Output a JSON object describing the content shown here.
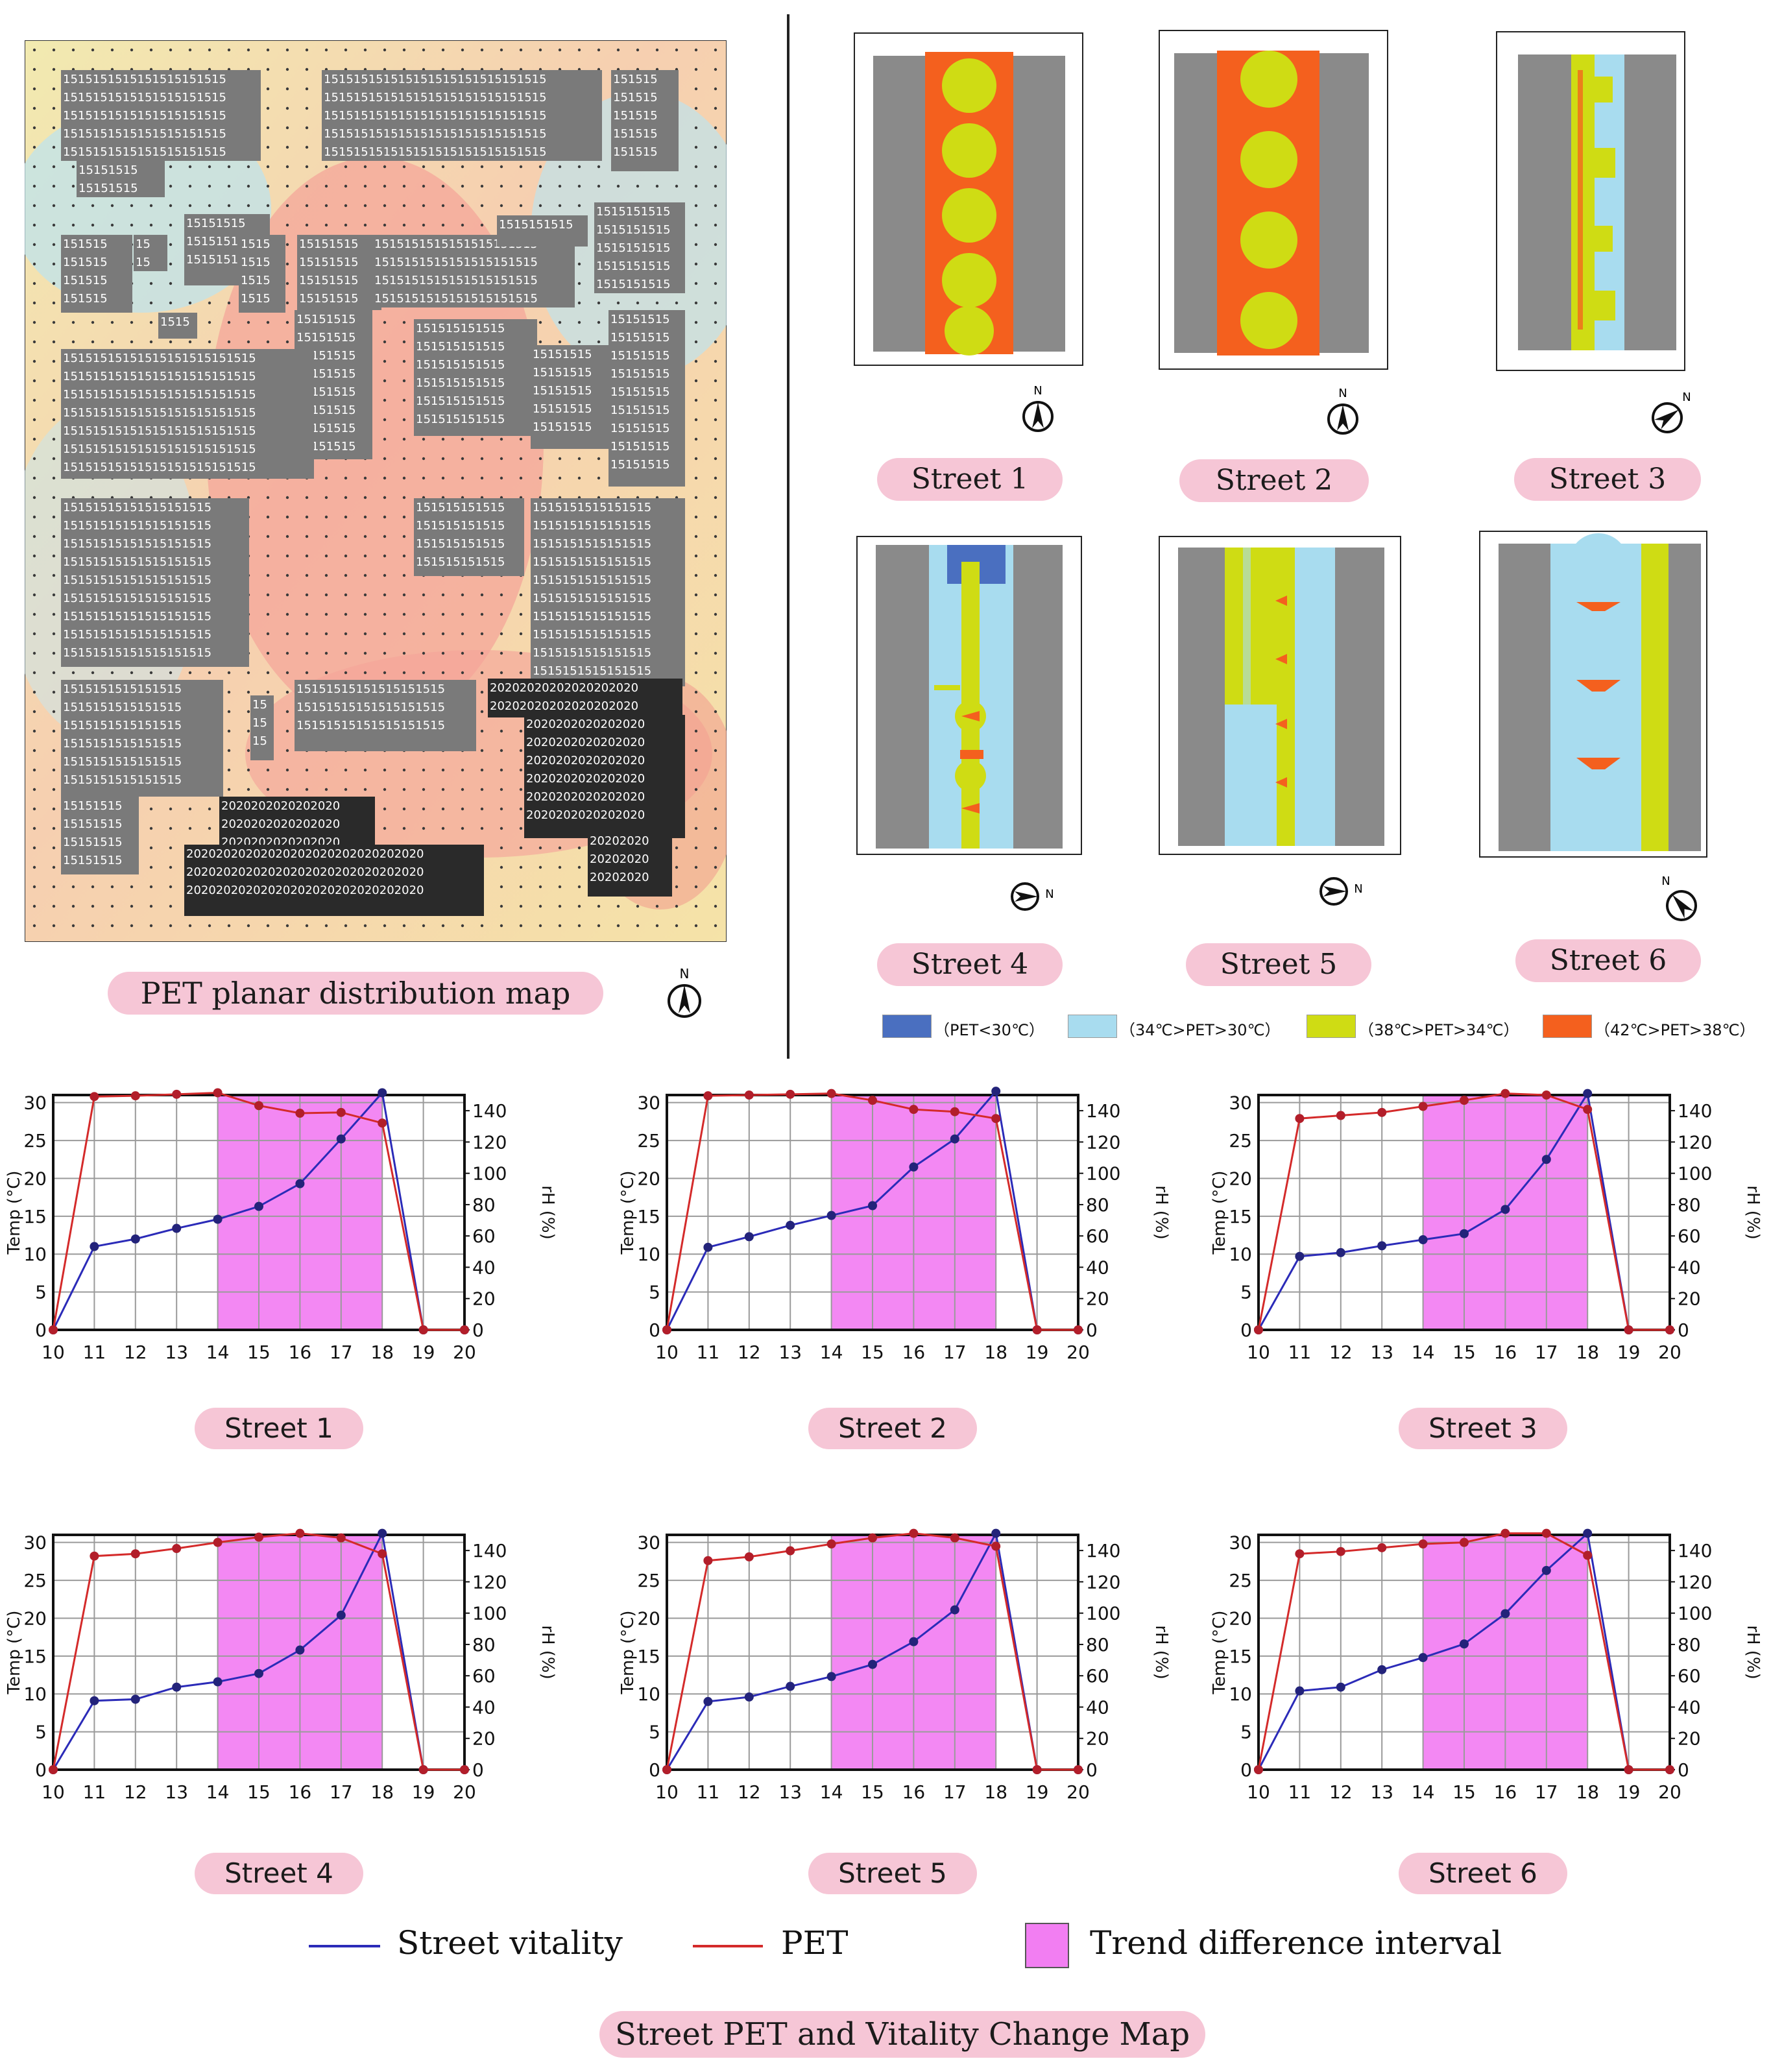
{
  "map_section": {
    "title": "PET planar distribution map",
    "north_label": "N",
    "block_label_a": "15",
    "block_label_b": "20"
  },
  "streets_section": {
    "streets": [
      {
        "label": "Street 1"
      },
      {
        "label": "Street 2"
      },
      {
        "label": "Street 3"
      },
      {
        "label": "Street 4"
      },
      {
        "label": "Street 5"
      },
      {
        "label": "Street 6"
      }
    ],
    "legend": [
      {
        "label": "（PET<30℃）",
        "color": "#4a6fc0"
      },
      {
        "label": "（34℃>PET>30℃）",
        "color": "#a8dcef"
      },
      {
        "label": "（38℃>PET>34℃）",
        "color": "#cfdc14"
      },
      {
        "label": "（42℃>PET>38℃）",
        "color": "#f4601e"
      }
    ],
    "colors": {
      "building": "#8a8a8a",
      "hot": "#f4601e",
      "warm": "#cfdc14",
      "mild": "#a8dcef",
      "cool": "#4a6fc0"
    }
  },
  "charts_section": {
    "title": "Street PET and Vitality Change Map",
    "legend": {
      "vitality": "Street vitality",
      "pet": "PET",
      "interval": "Trend difference interval"
    },
    "colors": {
      "vitality": "#2b2bb8",
      "pet": "#d42a2a",
      "interval": "#f27ef2"
    }
  },
  "chart_data": [
    {
      "type": "line",
      "title": "Street 1",
      "xlabel": "",
      "ylabel": "Temp (°C)",
      "ylabel_right": "rH (%)",
      "x": [
        10,
        11,
        12,
        13,
        14,
        15,
        16,
        17,
        18,
        19,
        20
      ],
      "ylim": [
        0,
        31
      ],
      "ylim_right": [
        0,
        150
      ],
      "yticks": [
        0,
        5,
        10,
        15,
        20,
        25,
        30
      ],
      "yticks_right": [
        0,
        20,
        40,
        60,
        80,
        100,
        120,
        140
      ],
      "highlight": [
        14,
        18
      ],
      "series": [
        {
          "name": "PET",
          "values": [
            0,
            30.8,
            30.9,
            31.1,
            31.3,
            29.6,
            28.6,
            28.7,
            27.3,
            0,
            0
          ]
        },
        {
          "name": "Street vitality",
          "values": [
            0,
            11,
            12,
            13.4,
            14.6,
            16.3,
            19.3,
            25.2,
            31.3,
            0,
            0
          ]
        }
      ]
    },
    {
      "type": "line",
      "title": "Street 2",
      "xlabel": "",
      "ylabel": "Temp (°C)",
      "ylabel_right": "rH (%)",
      "x": [
        10,
        11,
        12,
        13,
        14,
        15,
        16,
        17,
        18,
        19,
        20
      ],
      "ylim": [
        0,
        31
      ],
      "ylim_right": [
        0,
        150
      ],
      "yticks": [
        0,
        5,
        10,
        15,
        20,
        25,
        30
      ],
      "yticks_right": [
        0,
        20,
        40,
        60,
        80,
        100,
        120,
        140
      ],
      "highlight": [
        14,
        18
      ],
      "series": [
        {
          "name": "PET",
          "values": [
            0,
            30.9,
            31,
            31.1,
            31.2,
            30.3,
            29.1,
            28.8,
            27.9,
            0,
            0
          ]
        },
        {
          "name": "Street vitality",
          "values": [
            0,
            10.9,
            12.3,
            13.8,
            15.1,
            16.4,
            21.5,
            25.2,
            31.5,
            0,
            0
          ]
        }
      ]
    },
    {
      "type": "line",
      "title": "Street 3",
      "xlabel": "",
      "ylabel": "Temp (°C)",
      "ylabel_right": "rH (%)",
      "x": [
        10,
        11,
        12,
        13,
        14,
        15,
        16,
        17,
        18,
        19,
        20
      ],
      "ylim": [
        0,
        31
      ],
      "ylim_right": [
        0,
        150
      ],
      "yticks": [
        0,
        5,
        10,
        15,
        20,
        25,
        30
      ],
      "yticks_right": [
        0,
        20,
        40,
        60,
        80,
        100,
        120,
        140
      ],
      "highlight": [
        14,
        18
      ],
      "series": [
        {
          "name": "PET",
          "values": [
            0,
            27.9,
            28.3,
            28.7,
            29.5,
            30.3,
            31.2,
            31,
            29.1,
            0,
            0
          ]
        },
        {
          "name": "Street vitality",
          "values": [
            0,
            9.7,
            10.2,
            11.1,
            11.9,
            12.7,
            15.9,
            22.5,
            31.2,
            0,
            0
          ]
        }
      ]
    },
    {
      "type": "line",
      "title": "Street 4",
      "xlabel": "",
      "ylabel": "Temp (°C)",
      "ylabel_right": "rH (%)",
      "x": [
        10,
        11,
        12,
        13,
        14,
        15,
        16,
        17,
        18,
        19,
        20
      ],
      "ylim": [
        0,
        31
      ],
      "ylim_right": [
        0,
        150
      ],
      "yticks": [
        0,
        5,
        10,
        15,
        20,
        25,
        30
      ],
      "yticks_right": [
        0,
        20,
        40,
        60,
        80,
        100,
        120,
        140
      ],
      "highlight": [
        14,
        18
      ],
      "series": [
        {
          "name": "PET",
          "values": [
            0,
            28.2,
            28.5,
            29.2,
            30,
            30.7,
            31.2,
            30.6,
            28.5,
            0,
            0
          ]
        },
        {
          "name": "Street vitality",
          "values": [
            0,
            9.1,
            9.3,
            10.9,
            11.6,
            12.7,
            15.8,
            20.4,
            31.2,
            0,
            0
          ]
        }
      ]
    },
    {
      "type": "line",
      "title": "Street 5",
      "xlabel": "",
      "ylabel": "Temp (°C)",
      "ylabel_right": "rH (%)",
      "x": [
        10,
        11,
        12,
        13,
        14,
        15,
        16,
        17,
        18,
        19,
        20
      ],
      "ylim": [
        0,
        31
      ],
      "ylim_right": [
        0,
        150
      ],
      "yticks": [
        0,
        5,
        10,
        15,
        20,
        25,
        30
      ],
      "yticks_right": [
        0,
        20,
        40,
        60,
        80,
        100,
        120,
        140
      ],
      "highlight": [
        14,
        18
      ],
      "series": [
        {
          "name": "PET",
          "values": [
            0,
            27.6,
            28.1,
            28.9,
            29.8,
            30.6,
            31.2,
            30.6,
            29.5,
            0,
            0
          ]
        },
        {
          "name": "Street vitality",
          "values": [
            0,
            9,
            9.6,
            11,
            12.3,
            13.9,
            16.9,
            21.1,
            31.2,
            0,
            0
          ]
        }
      ]
    },
    {
      "type": "line",
      "title": "Street 6",
      "xlabel": "",
      "ylabel": "Temp (°C)",
      "ylabel_right": "rH (%)",
      "x": [
        10,
        11,
        12,
        13,
        14,
        15,
        16,
        17,
        18,
        19,
        20
      ],
      "ylim": [
        0,
        31
      ],
      "ylim_right": [
        0,
        150
      ],
      "yticks": [
        0,
        5,
        10,
        15,
        20,
        25,
        30
      ],
      "yticks_right": [
        0,
        20,
        40,
        60,
        80,
        100,
        120,
        140
      ],
      "highlight": [
        14,
        18
      ],
      "series": [
        {
          "name": "PET",
          "values": [
            0,
            28.5,
            28.8,
            29.3,
            29.8,
            30,
            31.2,
            31.2,
            28.3,
            0,
            0
          ]
        },
        {
          "name": "Street vitality",
          "values": [
            0,
            10.4,
            10.9,
            13.2,
            14.8,
            16.6,
            20.6,
            26.3,
            31.2,
            0,
            0
          ]
        }
      ]
    }
  ]
}
